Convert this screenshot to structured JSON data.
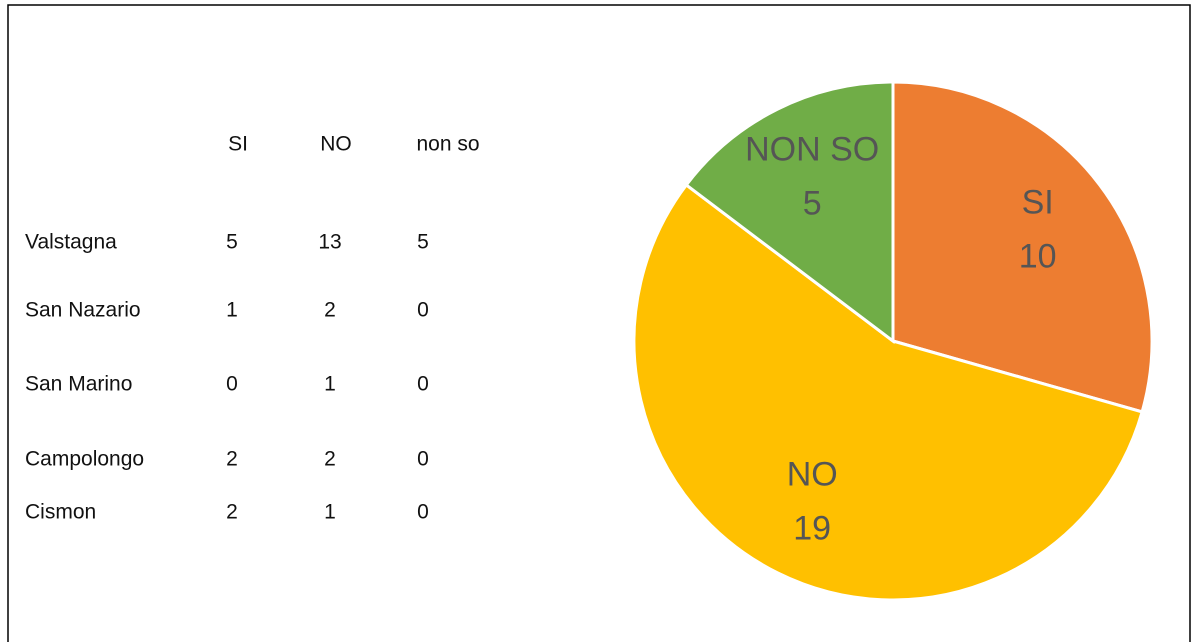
{
  "table": {
    "columns": [
      "SI",
      "NO",
      "non so"
    ],
    "rows": [
      {
        "name": "Valstagna",
        "values": [
          5,
          13,
          5
        ]
      },
      {
        "name": "San Nazario",
        "values": [
          1,
          2,
          0
        ]
      },
      {
        "name": "San Marino",
        "values": [
          0,
          1,
          0
        ]
      },
      {
        "name": "Campolongo",
        "values": [
          2,
          2,
          0
        ]
      },
      {
        "name": "Cismon",
        "values": [
          2,
          1,
          0
        ]
      }
    ]
  },
  "chart_data": {
    "type": "pie",
    "categories": [
      "SI",
      "NO",
      "NON SO"
    ],
    "values": [
      10,
      19,
      5
    ],
    "colors": [
      "#ed7d31",
      "#ffc000",
      "#70ad47"
    ]
  }
}
